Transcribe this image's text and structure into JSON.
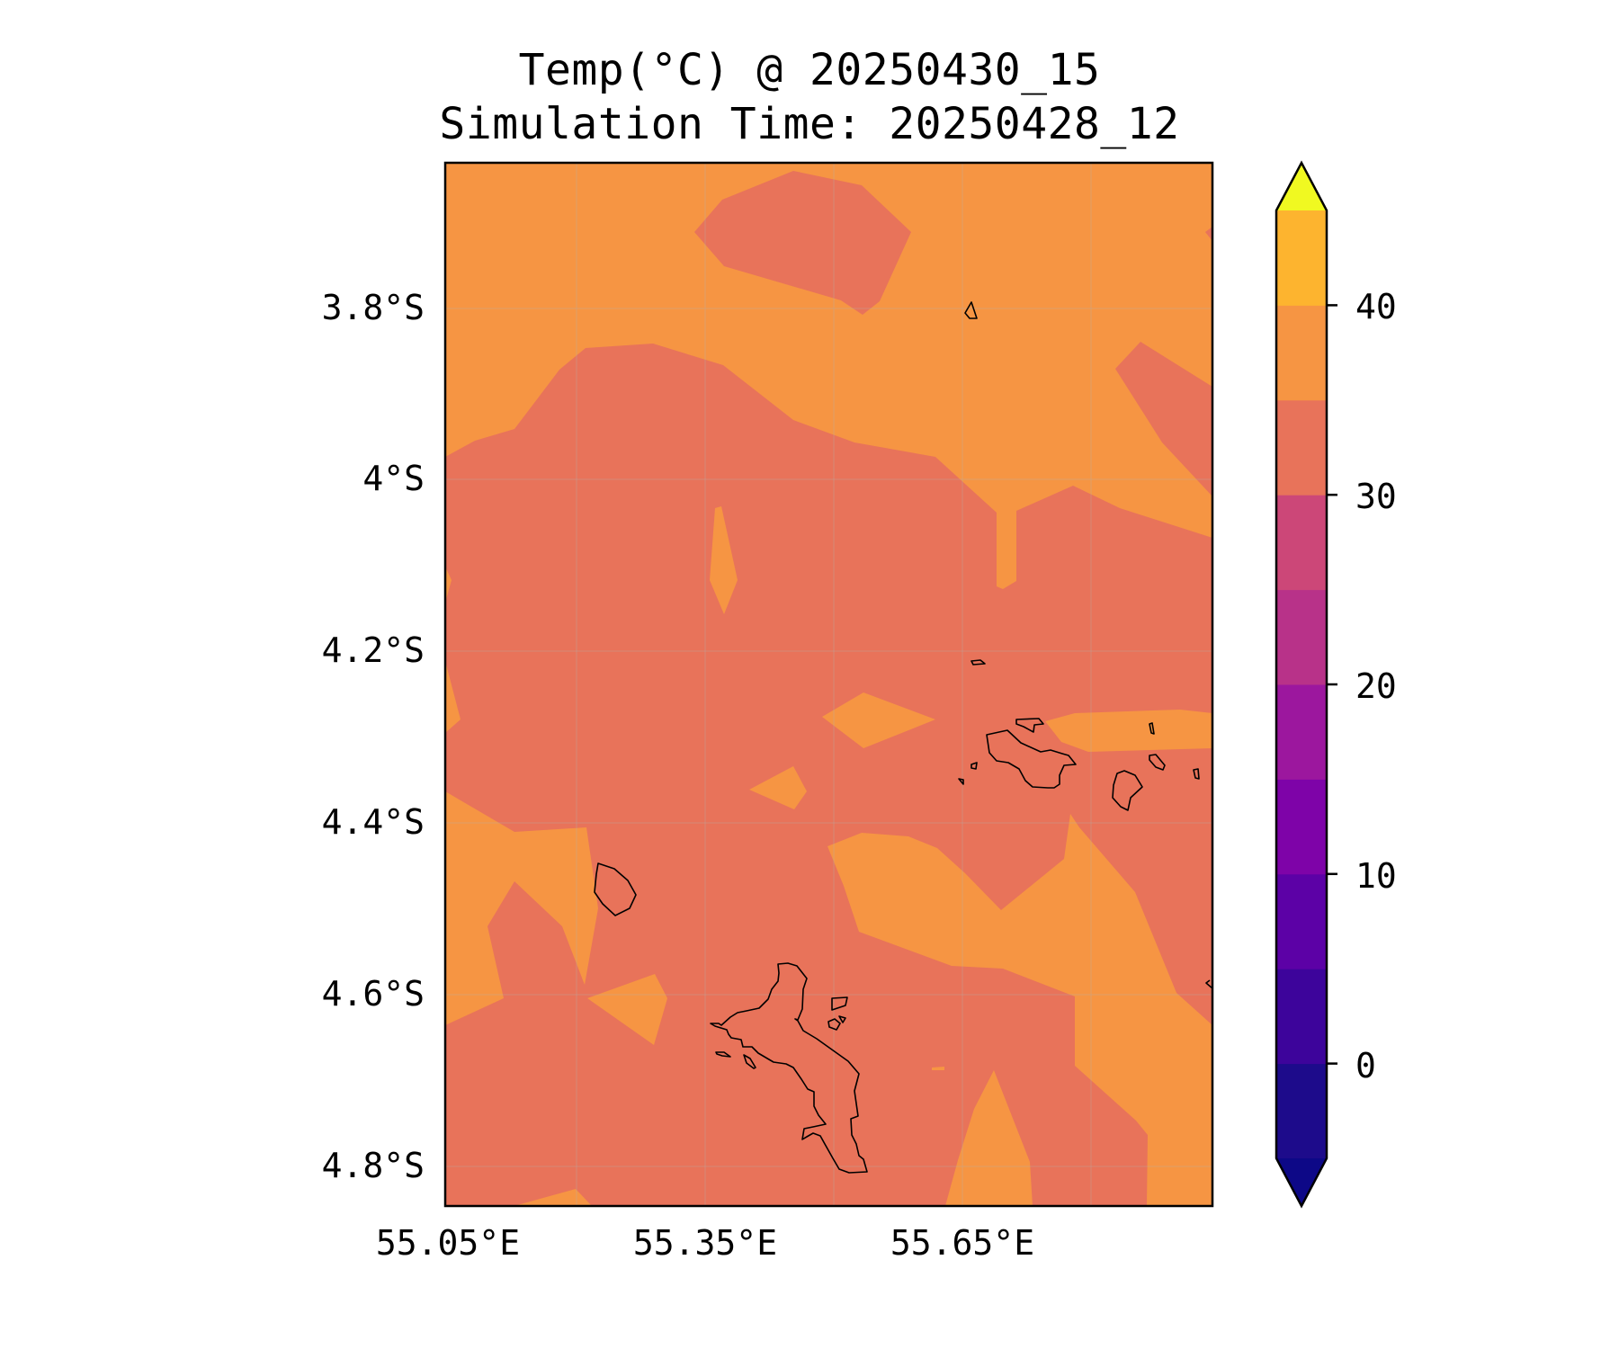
{
  "title": {
    "line1": "Temp(°C) @ 20250430_15",
    "line2": "Simulation Time: 20250428_12"
  },
  "map": {
    "lon_ticks": [
      "55.05°E",
      "55.35°E",
      "55.65°E"
    ],
    "lat_ticks": [
      "3.8°S",
      "4°S",
      "4.2°S",
      "4.4°S",
      "4.6°S",
      "4.8°S"
    ],
    "colors": {
      "warm": "#f69543",
      "mild": "#e8735a",
      "coastline": "#000000",
      "grid": "#b0b0b0"
    }
  },
  "colorbar": {
    "tick_labels": [
      "0",
      "10",
      "20",
      "30",
      "40"
    ],
    "levels": [
      -5,
      0,
      5,
      10,
      15,
      20,
      25,
      30,
      35,
      40,
      45
    ],
    "colors": [
      "#1d0b8b",
      "#3d049b",
      "#5c01a6",
      "#7e03a8",
      "#9c179e",
      "#b83289",
      "#cc4778",
      "#e8735a",
      "#f69543",
      "#fdb42f",
      "#f3e329"
    ],
    "under_color": "#0d0887",
    "over_color": "#f0f921"
  }
}
